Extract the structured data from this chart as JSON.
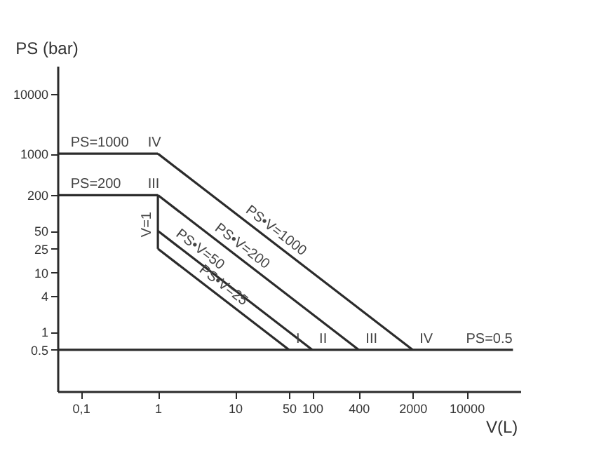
{
  "chart_data": {
    "type": "line",
    "xlabel": "V(L)",
    "ylabel": "PS (bar)",
    "log": "xy",
    "xlim": [
      0.05,
      50000
    ],
    "ylim": [
      0.1,
      30000
    ],
    "xticks": [
      {
        "value": 0.1,
        "label": "0,1"
      },
      1,
      10,
      50,
      100,
      400,
      2000,
      10000
    ],
    "yticks": [
      0.5,
      1,
      4,
      10,
      25,
      50,
      200,
      1000,
      10000
    ],
    "series": [
      {
        "color": "#2b2b2b",
        "x": [
          0.05,
          1
        ],
        "values": [
          1000,
          1000
        ]
      },
      {
        "color": "#2b2b2b",
        "x": [
          1,
          2000
        ],
        "values": [
          1000,
          0.5
        ]
      },
      {
        "color": "#2b2b2b",
        "x": [
          0.05,
          1
        ],
        "values": [
          200,
          200
        ]
      },
      {
        "color": "#2b2b2b",
        "x": [
          1,
          400
        ],
        "values": [
          200,
          0.5
        ]
      },
      {
        "color": "#2b2b2b",
        "x": [
          1,
          1
        ],
        "values": [
          200,
          25
        ]
      },
      {
        "color": "#2b2b2b",
        "x": [
          1,
          100
        ],
        "values": [
          50,
          0.5
        ]
      },
      {
        "color": "#2b2b2b",
        "x": [
          1,
          50
        ],
        "values": [
          25,
          0.5
        ]
      },
      {
        "color": "#2b2b2b",
        "x": [
          0.05,
          40000
        ],
        "values": [
          0.5,
          0.5
        ]
      }
    ],
    "annotations": [
      {
        "text": "IV",
        "x": 0.6,
        "y": 1000
      },
      {
        "text": "III",
        "x": 0.6,
        "y": 200
      },
      {
        "text": "I",
        "x": 50,
        "y": 0.5
      },
      {
        "text": "II",
        "x": 100,
        "y": 0.5
      },
      {
        "text": "III",
        "x": 400,
        "y": 0.5
      },
      {
        "text": "IV",
        "x": 2000,
        "y": 0.5
      },
      {
        "text": "PS=0.5",
        "x": 8000,
        "y": 0.5
      },
      {
        "text": "PS=1000",
        "x": 0.06,
        "y": 1000
      },
      {
        "text": "PS=200",
        "x": 0.06,
        "y": 200
      },
      {
        "text": "V=1",
        "x": 1,
        "y": 30
      },
      {
        "text": "PS•V=1000",
        "x": 10,
        "y": 100
      },
      {
        "text": "PS•V=200",
        "x": 4,
        "y": 50
      },
      {
        "text": "PS•V=50",
        "x": 1.25,
        "y": 40
      },
      {
        "text": "PS•V=25",
        "x": 2.5,
        "y": 10
      }
    ]
  }
}
